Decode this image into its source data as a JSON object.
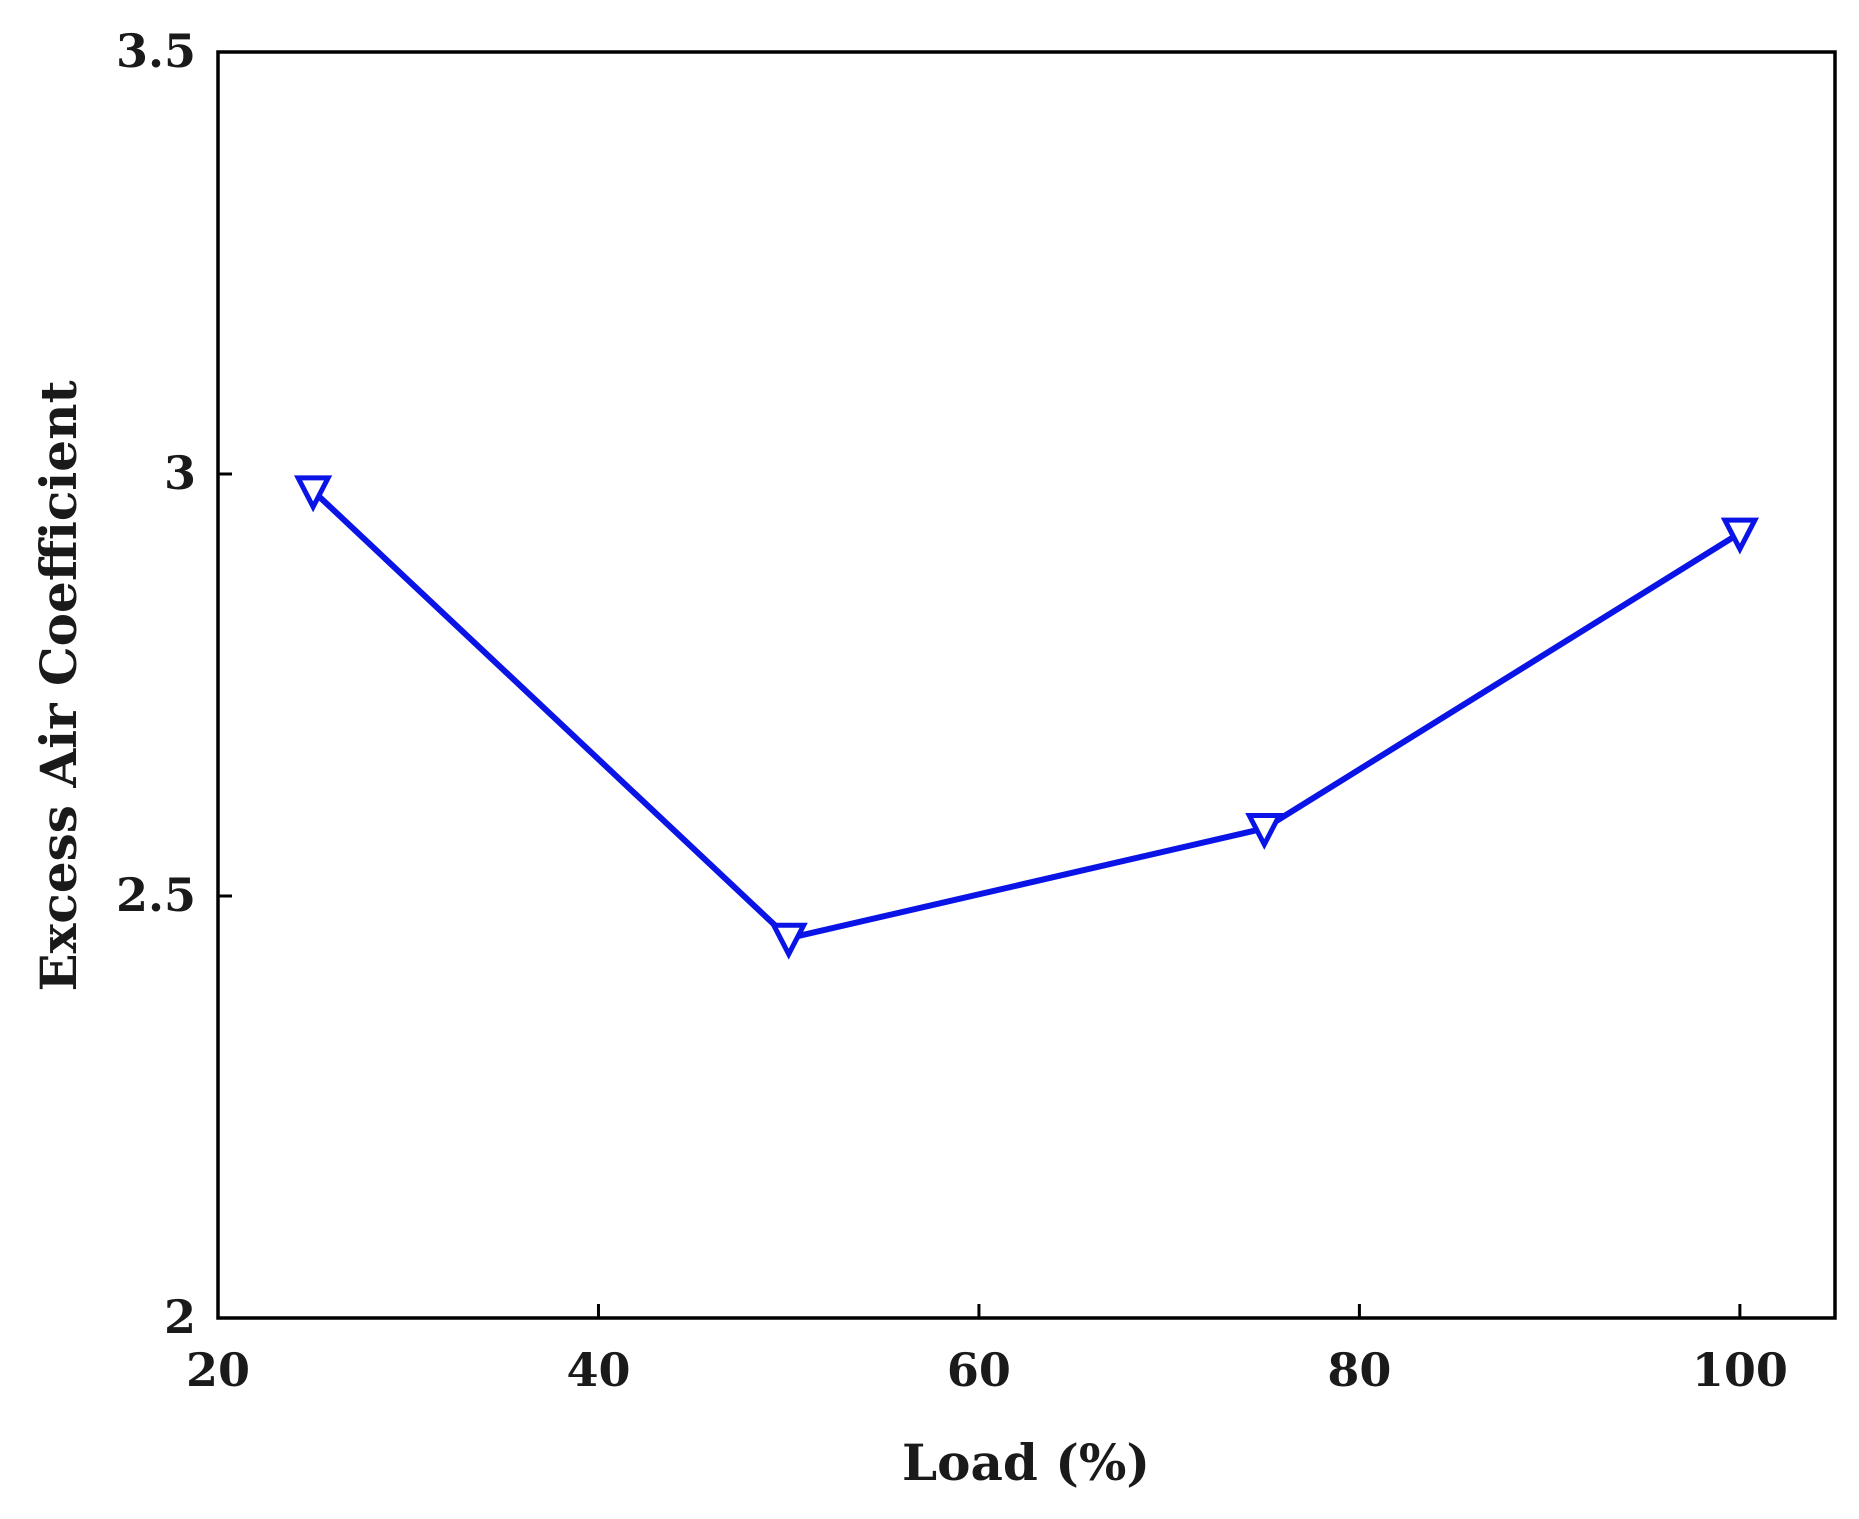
{
  "chart_data": {
    "type": "line",
    "title": "",
    "xlabel": "Load (%)",
    "ylabel": "Excess Air Coefficient",
    "xlim": [
      20,
      105
    ],
    "ylim": [
      2,
      3.5
    ],
    "x_ticks": [
      20,
      40,
      60,
      80,
      100
    ],
    "x_tick_labels": [
      "20",
      "40",
      "60",
      "80",
      "100"
    ],
    "y_ticks": [
      2,
      2.5,
      3,
      3.5
    ],
    "y_tick_labels": [
      "2",
      "2.5",
      "3",
      "3.5"
    ],
    "grid": false,
    "legend": "none",
    "series": [
      {
        "x": [
          25,
          50,
          75,
          100
        ],
        "y": [
          2.98,
          2.45,
          2.58,
          2.93
        ],
        "color": "#0a14e6",
        "marker": "triangle-down-open"
      }
    ]
  }
}
